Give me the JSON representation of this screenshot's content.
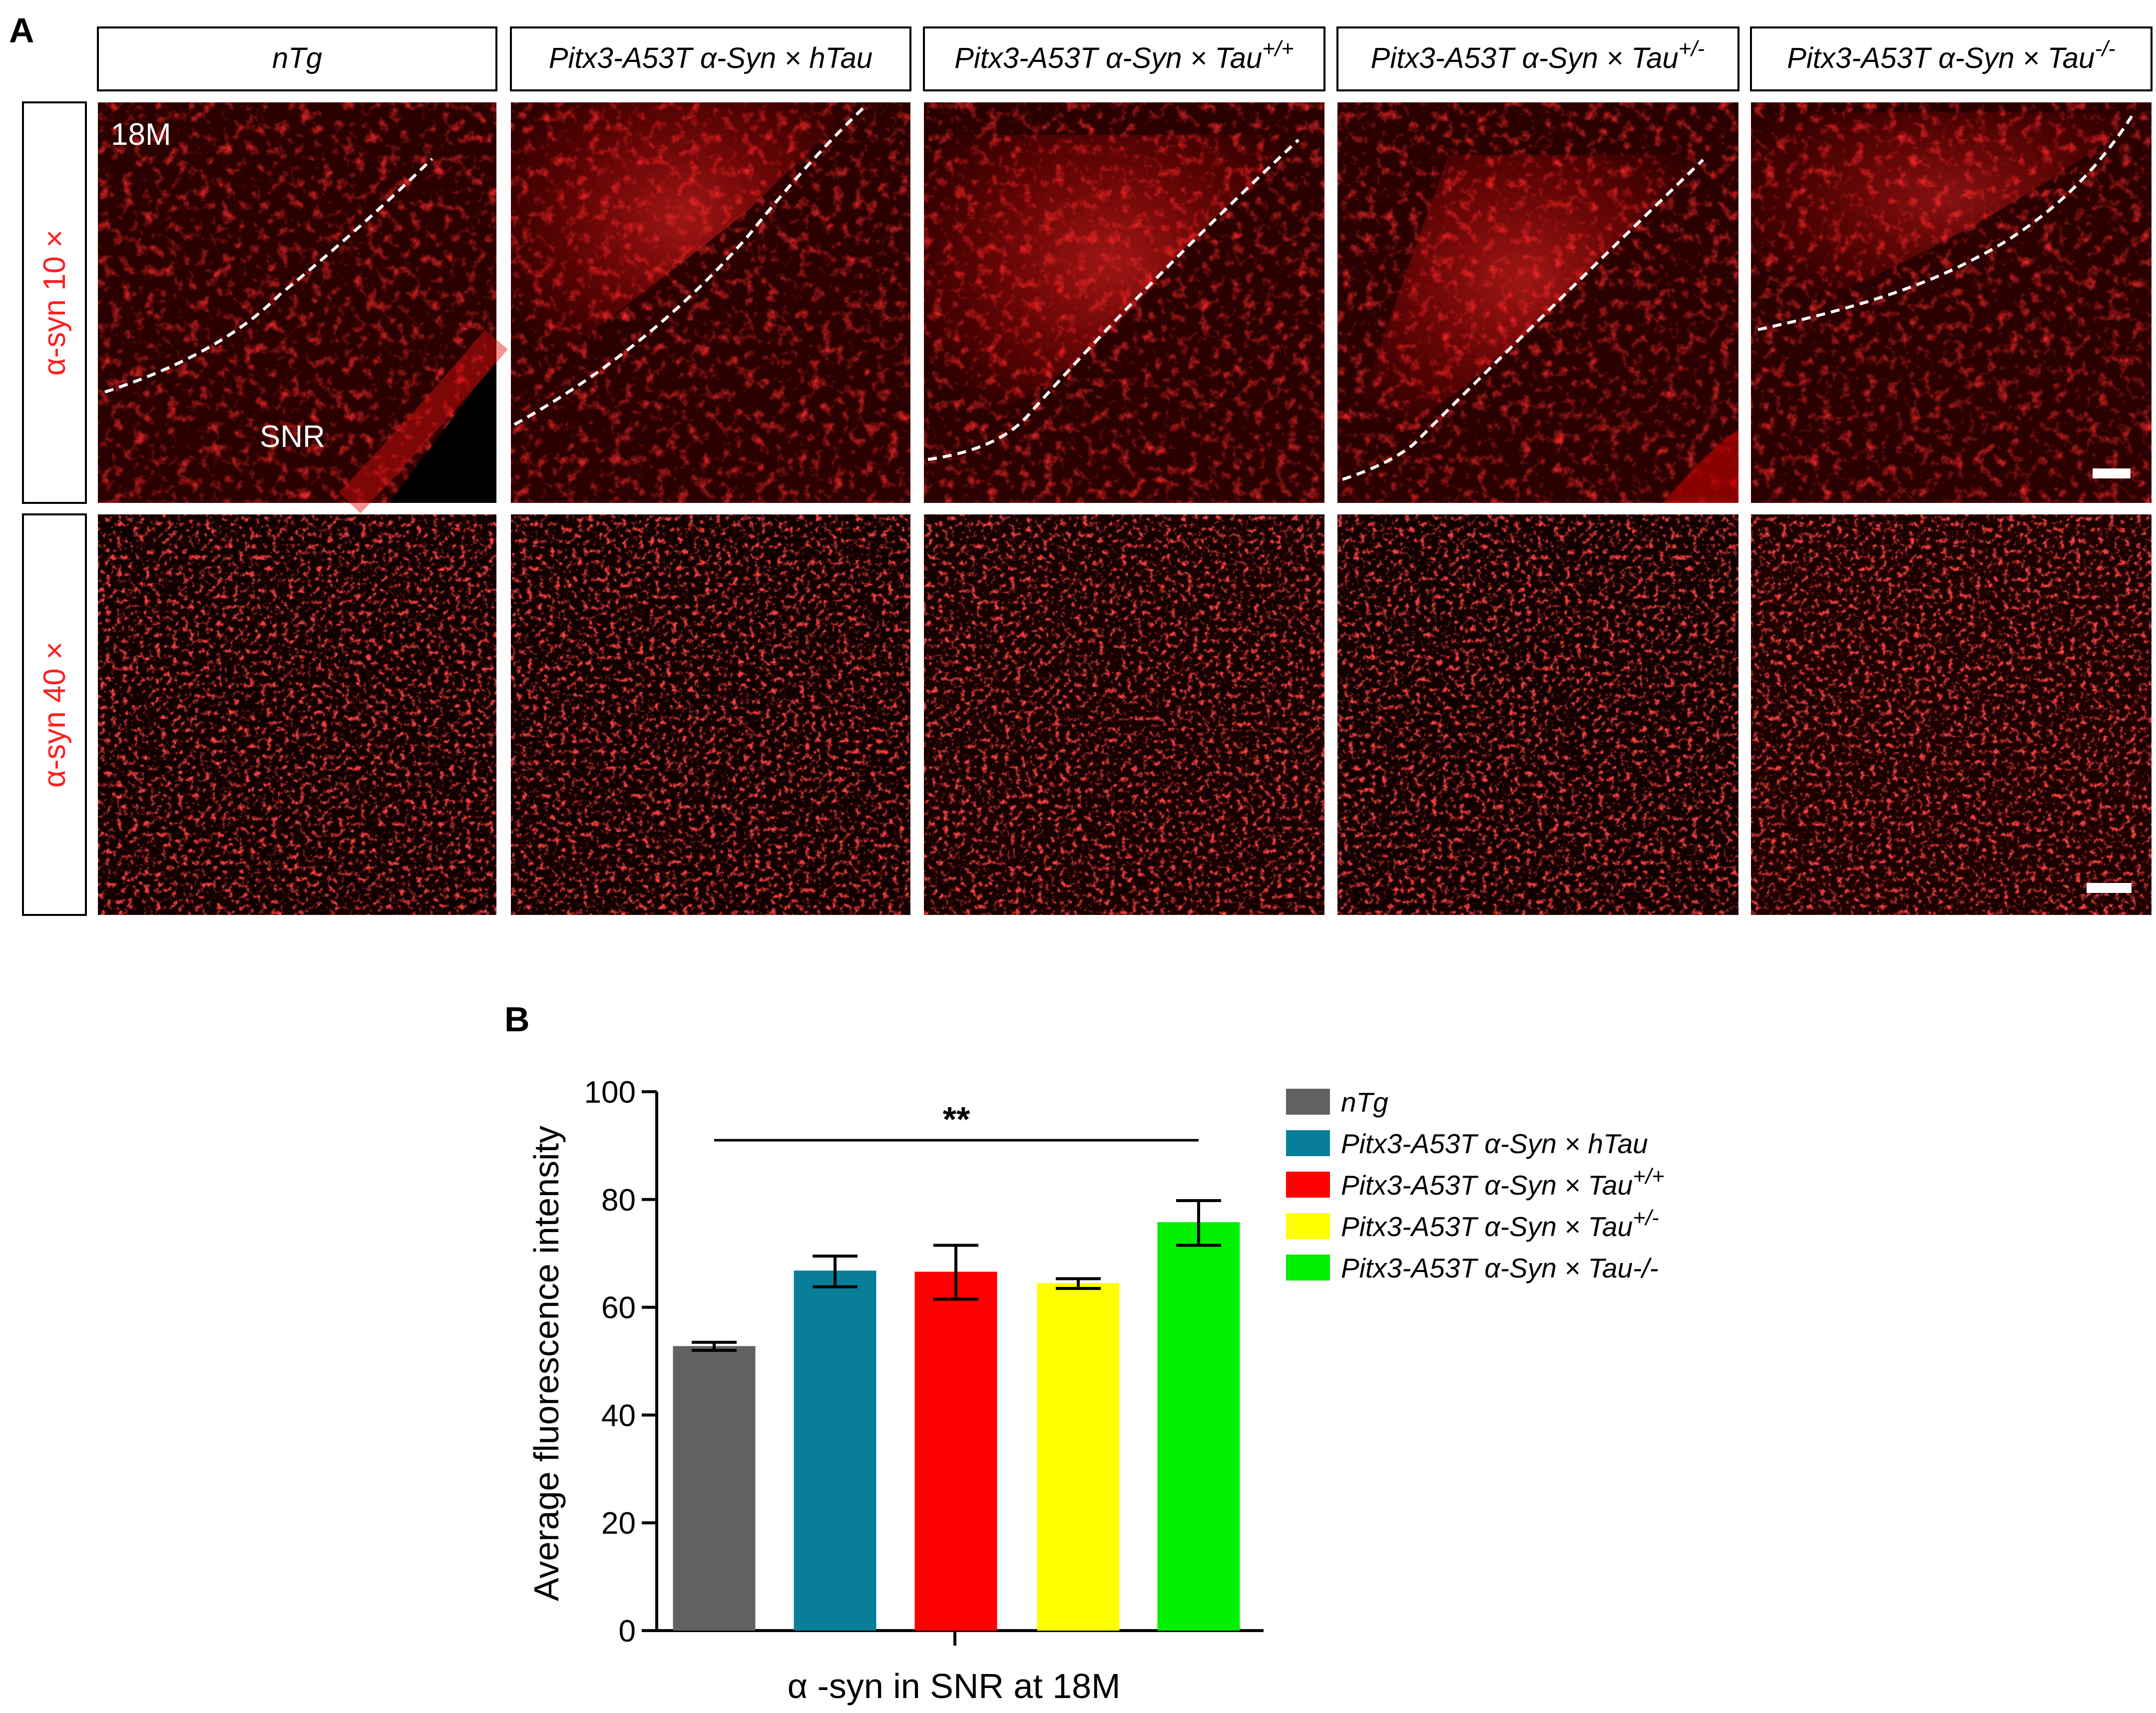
{
  "panel_a": {
    "letter": "A",
    "column_headers": [
      {
        "main": "nTg",
        "sup": ""
      },
      {
        "main": "Pitx3-A53T α-Syn × hTau",
        "sup": ""
      },
      {
        "main": "Pitx3-A53T α-Syn × Tau",
        "sup": "+/+"
      },
      {
        "main": "Pitx3-A53T α-Syn × Tau",
        "sup": "+/-"
      },
      {
        "main": "Pitx3-A53T α-Syn × Tau",
        "sup": "-/-"
      }
    ],
    "row_labels": [
      "α-syn 10 ×",
      "α-syn 40 ×"
    ],
    "inset_age": "18M",
    "inset_region": "SNR"
  },
  "panel_b": {
    "letter": "B"
  },
  "chart_data": {
    "type": "bar",
    "title": "",
    "xlabel": "α -syn in SNR at  18M",
    "ylabel": "Average fluorescence intensity",
    "ylim": [
      0,
      100
    ],
    "yticks": [
      0,
      20,
      40,
      60,
      80,
      100
    ],
    "grid": false,
    "legend_position": "right",
    "categories": [
      "nTg",
      "Pitx3-A53T α-Syn × hTau",
      "Pitx3-A53T α-Syn × Tau+/+",
      "Pitx3-A53T α-Syn × Tau+/-",
      "Pitx3-A53T α-Syn × Tau-/-"
    ],
    "legend": [
      {
        "main": "nTg",
        "sup": ""
      },
      {
        "main": "Pitx3-A53T α-Syn × hTau",
        "sup": ""
      },
      {
        "main": "Pitx3-A53T α-Syn × Tau",
        "sup": "+/+"
      },
      {
        "main": "Pitx3-A53T α-Syn × Tau",
        "sup": "+/-"
      },
      {
        "main": "Pitx3-A53T α-Syn × Tau-/-",
        "sup": ""
      }
    ],
    "values": [
      52.8,
      66.8,
      66.6,
      64.5,
      75.8
    ],
    "error_low": [
      52.0,
      63.8,
      61.5,
      63.5,
      71.5
    ],
    "error_high": [
      53.5,
      69.5,
      71.5,
      65.3,
      79.8
    ],
    "colors": [
      "#626262",
      "#087e98",
      "#ff0000",
      "#ffff00",
      "#00f000"
    ],
    "significance": {
      "label": "**",
      "from_index": 0,
      "to_index": 4,
      "y": 91
    }
  }
}
